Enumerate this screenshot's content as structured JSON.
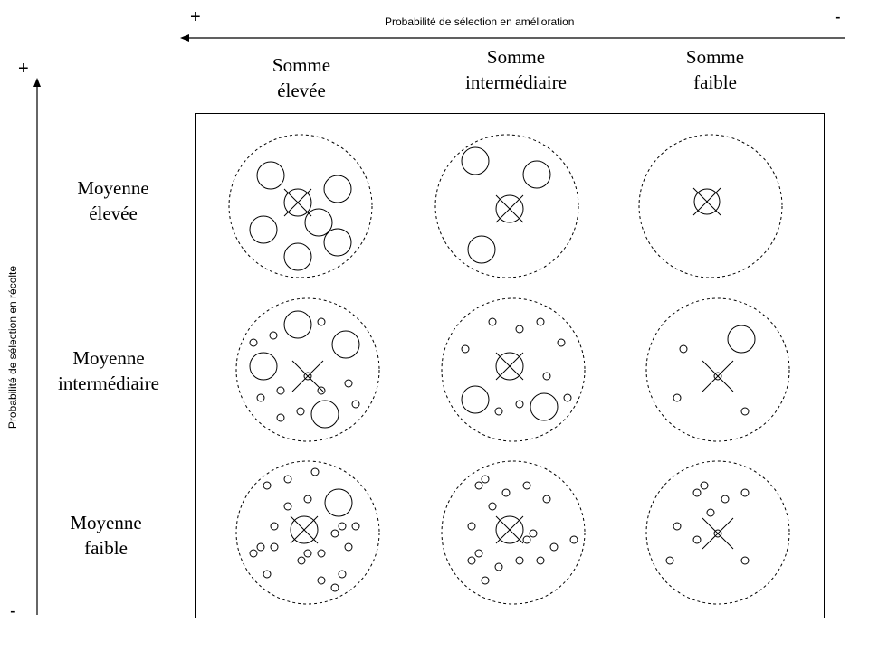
{
  "axes": {
    "horizontal": {
      "title": "Probabilité de sélection en amélioration",
      "plus": "+",
      "minus": "-"
    },
    "vertical": {
      "title": "Probabilité de sélection en récolte",
      "plus": "+",
      "minus": "-"
    }
  },
  "columns": [
    {
      "line1": "Somme",
      "line2": "élevée"
    },
    {
      "line1": "Somme",
      "line2": "intermédiaire"
    },
    {
      "line1": "Somme",
      "line2": "faible"
    }
  ],
  "rows": [
    {
      "line1": "Moyenne",
      "line2": "élevée"
    },
    {
      "line1": "Moyenne",
      "line2": "intermédiaire"
    },
    {
      "line1": "Moyenne",
      "line2": "faible"
    }
  ]
}
